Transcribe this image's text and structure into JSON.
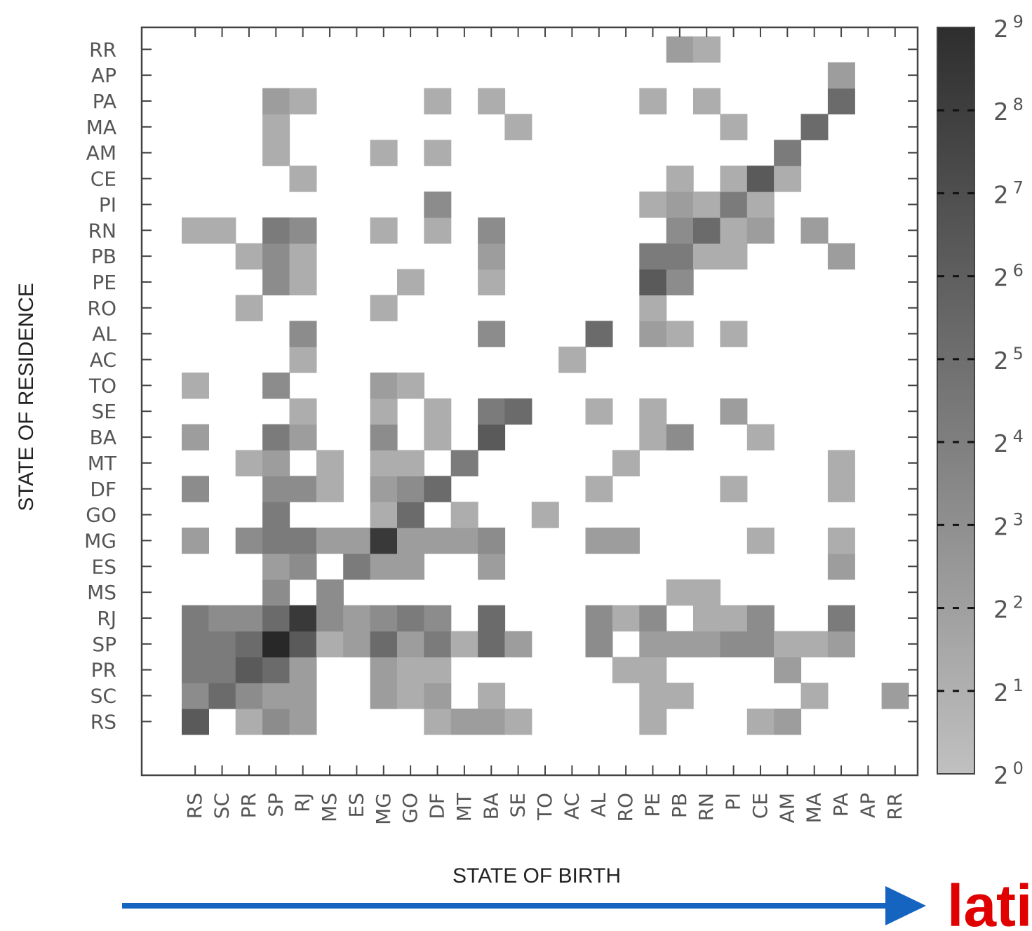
{
  "chart_data": {
    "type": "heatmap",
    "xlabel": "STATE OF BIRTH",
    "ylabel": "STATE OF RESIDENCE",
    "x_categories": [
      "RS",
      "SC",
      "PR",
      "SP",
      "RJ",
      "MS",
      "ES",
      "MG",
      "GO",
      "DF",
      "MT",
      "BA",
      "SE",
      "TO",
      "AC",
      "AL",
      "RO",
      "PE",
      "PB",
      "RN",
      "PI",
      "CE",
      "AM",
      "MA",
      "PA",
      "AP",
      "RR"
    ],
    "y_categories": [
      "RS",
      "SC",
      "PR",
      "SP",
      "RJ",
      "MS",
      "ES",
      "MG",
      "GO",
      "DF",
      "MT",
      "BA",
      "SE",
      "TO",
      "AC",
      "AL",
      "RO",
      "PE",
      "PB",
      "RN",
      "PI",
      "CE",
      "AM",
      "MA",
      "PA",
      "AP",
      "RR"
    ],
    "colorbar": {
      "scale": "log2",
      "min_exponent": 0,
      "max_exponent": 9,
      "tick_labels": [
        {
          "base": "2",
          "exp": "0"
        },
        {
          "base": "2",
          "exp": "1"
        },
        {
          "base": "2",
          "exp": "2"
        },
        {
          "base": "2",
          "exp": "3"
        },
        {
          "base": "2",
          "exp": "4"
        },
        {
          "base": "2",
          "exp": "5"
        },
        {
          "base": "2",
          "exp": "6"
        },
        {
          "base": "2",
          "exp": "7"
        },
        {
          "base": "2",
          "exp": "8"
        },
        {
          "base": "2",
          "exp": "9"
        }
      ]
    },
    "note": "cells list [residence, birth, log2 value]; blank cells = no data",
    "cells": [
      [
        "RS",
        "RS",
        6
      ],
      [
        "RS",
        "PR",
        1
      ],
      [
        "RS",
        "SP",
        3
      ],
      [
        "RS",
        "RJ",
        2
      ],
      [
        "RS",
        "DF",
        1
      ],
      [
        "RS",
        "MT",
        2
      ],
      [
        "RS",
        "BA",
        2
      ],
      [
        "RS",
        "SE",
        1
      ],
      [
        "RS",
        "PE",
        1
      ],
      [
        "RS",
        "CE",
        1
      ],
      [
        "RS",
        "AM",
        2
      ],
      [
        "SC",
        "RS",
        3
      ],
      [
        "SC",
        "SC",
        5
      ],
      [
        "SC",
        "PR",
        3
      ],
      [
        "SC",
        "SP",
        2
      ],
      [
        "SC",
        "RJ",
        2
      ],
      [
        "SC",
        "MG",
        2
      ],
      [
        "SC",
        "GO",
        1
      ],
      [
        "SC",
        "DF",
        2
      ],
      [
        "SC",
        "BA",
        1
      ],
      [
        "SC",
        "PE",
        1
      ],
      [
        "SC",
        "PB",
        1
      ],
      [
        "SC",
        "MA",
        1
      ],
      [
        "SC",
        "RR",
        2
      ],
      [
        "PR",
        "RS",
        4
      ],
      [
        "PR",
        "SC",
        4
      ],
      [
        "PR",
        "PR",
        6
      ],
      [
        "PR",
        "SP",
        5
      ],
      [
        "PR",
        "RJ",
        2
      ],
      [
        "PR",
        "MG",
        2
      ],
      [
        "PR",
        "GO",
        1
      ],
      [
        "PR",
        "DF",
        1
      ],
      [
        "PR",
        "RO",
        1
      ],
      [
        "PR",
        "PE",
        1
      ],
      [
        "PR",
        "AM",
        2
      ],
      [
        "SP",
        "RS",
        4
      ],
      [
        "SP",
        "SC",
        4
      ],
      [
        "SP",
        "PR",
        5
      ],
      [
        "SP",
        "SP",
        9
      ],
      [
        "SP",
        "RJ",
        6
      ],
      [
        "SP",
        "MS",
        1
      ],
      [
        "SP",
        "ES",
        2
      ],
      [
        "SP",
        "MG",
        5
      ],
      [
        "SP",
        "GO",
        2
      ],
      [
        "SP",
        "DF",
        4
      ],
      [
        "SP",
        "MT",
        1
      ],
      [
        "SP",
        "BA",
        5
      ],
      [
        "SP",
        "SE",
        2
      ],
      [
        "SP",
        "AL",
        3
      ],
      [
        "SP",
        "PE",
        2
      ],
      [
        "SP",
        "PB",
        2
      ],
      [
        "SP",
        "RN",
        2
      ],
      [
        "SP",
        "PI",
        3
      ],
      [
        "SP",
        "CE",
        3
      ],
      [
        "SP",
        "AM",
        1
      ],
      [
        "SP",
        "MA",
        1
      ],
      [
        "SP",
        "PA",
        2
      ],
      [
        "RJ",
        "RS",
        4
      ],
      [
        "RJ",
        "SC",
        3
      ],
      [
        "RJ",
        "PR",
        3
      ],
      [
        "RJ",
        "SP",
        5
      ],
      [
        "RJ",
        "RJ",
        8
      ],
      [
        "RJ",
        "MS",
        3
      ],
      [
        "RJ",
        "ES",
        2
      ],
      [
        "RJ",
        "MG",
        3
      ],
      [
        "RJ",
        "GO",
        4
      ],
      [
        "RJ",
        "DF",
        3
      ],
      [
        "RJ",
        "BA",
        5
      ],
      [
        "RJ",
        "AL",
        3
      ],
      [
        "RJ",
        "RO",
        1
      ],
      [
        "RJ",
        "PE",
        3
      ],
      [
        "RJ",
        "RN",
        1
      ],
      [
        "RJ",
        "PI",
        1
      ],
      [
        "RJ",
        "CE",
        3
      ],
      [
        "RJ",
        "PA",
        4
      ],
      [
        "MS",
        "SP",
        3
      ],
      [
        "MS",
        "MS",
        3
      ],
      [
        "MS",
        "PB",
        1
      ],
      [
        "MS",
        "RN",
        1
      ],
      [
        "ES",
        "SP",
        2
      ],
      [
        "ES",
        "RJ",
        3
      ],
      [
        "ES",
        "ES",
        4
      ],
      [
        "ES",
        "MG",
        2
      ],
      [
        "ES",
        "GO",
        2
      ],
      [
        "ES",
        "BA",
        2
      ],
      [
        "ES",
        "PA",
        2
      ],
      [
        "MG",
        "RS",
        2
      ],
      [
        "MG",
        "PR",
        3
      ],
      [
        "MG",
        "SP",
        4
      ],
      [
        "MG",
        "RJ",
        4
      ],
      [
        "MG",
        "MS",
        2
      ],
      [
        "MG",
        "ES",
        2
      ],
      [
        "MG",
        "MG",
        8
      ],
      [
        "MG",
        "GO",
        2
      ],
      [
        "MG",
        "DF",
        2
      ],
      [
        "MG",
        "MT",
        2
      ],
      [
        "MG",
        "BA",
        3
      ],
      [
        "MG",
        "AL",
        2
      ],
      [
        "MG",
        "RO",
        2
      ],
      [
        "MG",
        "CE",
        1
      ],
      [
        "MG",
        "PA",
        1
      ],
      [
        "GO",
        "SP",
        4
      ],
      [
        "GO",
        "MG",
        1
      ],
      [
        "GO",
        "GO",
        5
      ],
      [
        "GO",
        "MT",
        1
      ],
      [
        "GO",
        "TO",
        1
      ],
      [
        "DF",
        "RS",
        3
      ],
      [
        "DF",
        "SP",
        3
      ],
      [
        "DF",
        "RJ",
        3
      ],
      [
        "DF",
        "MS",
        1
      ],
      [
        "DF",
        "MG",
        2
      ],
      [
        "DF",
        "GO",
        3
      ],
      [
        "DF",
        "DF",
        5
      ],
      [
        "DF",
        "AL",
        1
      ],
      [
        "DF",
        "PI",
        1
      ],
      [
        "DF",
        "PA",
        1
      ],
      [
        "MT",
        "PR",
        1
      ],
      [
        "MT",
        "SP",
        2
      ],
      [
        "MT",
        "MS",
        1
      ],
      [
        "MT",
        "MG",
        1
      ],
      [
        "MT",
        "GO",
        1
      ],
      [
        "MT",
        "MT",
        4
      ],
      [
        "MT",
        "RO",
        1
      ],
      [
        "MT",
        "PA",
        1
      ],
      [
        "BA",
        "RS",
        2
      ],
      [
        "BA",
        "SP",
        4
      ],
      [
        "BA",
        "RJ",
        2
      ],
      [
        "BA",
        "MG",
        3
      ],
      [
        "BA",
        "DF",
        1
      ],
      [
        "BA",
        "BA",
        6
      ],
      [
        "BA",
        "PE",
        1
      ],
      [
        "BA",
        "PB",
        3
      ],
      [
        "BA",
        "CE",
        1
      ],
      [
        "SE",
        "RJ",
        1
      ],
      [
        "SE",
        "MG",
        1
      ],
      [
        "SE",
        "DF",
        1
      ],
      [
        "SE",
        "BA",
        4
      ],
      [
        "SE",
        "SE",
        5
      ],
      [
        "SE",
        "AL",
        1
      ],
      [
        "SE",
        "PE",
        1
      ],
      [
        "SE",
        "PI",
        2
      ],
      [
        "TO",
        "RS",
        1
      ],
      [
        "TO",
        "SP",
        3
      ],
      [
        "TO",
        "MG",
        2
      ],
      [
        "TO",
        "GO",
        1
      ],
      [
        "AC",
        "RJ",
        1
      ],
      [
        "AC",
        "AC",
        1
      ],
      [
        "AL",
        "RJ",
        3
      ],
      [
        "AL",
        "BA",
        3
      ],
      [
        "AL",
        "AL",
        5
      ],
      [
        "AL",
        "PE",
        2
      ],
      [
        "AL",
        "PB",
        1
      ],
      [
        "AL",
        "PI",
        1
      ],
      [
        "RO",
        "PR",
        1
      ],
      [
        "RO",
        "MG",
        1
      ],
      [
        "RO",
        "PE",
        1
      ],
      [
        "PE",
        "SP",
        3
      ],
      [
        "PE",
        "RJ",
        1
      ],
      [
        "PE",
        "GO",
        1
      ],
      [
        "PE",
        "BA",
        1
      ],
      [
        "PE",
        "PE",
        6
      ],
      [
        "PE",
        "PB",
        3
      ],
      [
        "PB",
        "PR",
        1
      ],
      [
        "PB",
        "SP",
        3
      ],
      [
        "PB",
        "RJ",
        1
      ],
      [
        "PB",
        "BA",
        2
      ],
      [
        "PB",
        "PE",
        4
      ],
      [
        "PB",
        "PB",
        4
      ],
      [
        "PB",
        "RN",
        1
      ],
      [
        "PB",
        "PI",
        1
      ],
      [
        "PB",
        "PA",
        2
      ],
      [
        "RN",
        "RS",
        1
      ],
      [
        "RN",
        "SC",
        1
      ],
      [
        "RN",
        "SP",
        4
      ],
      [
        "RN",
        "RJ",
        3
      ],
      [
        "RN",
        "MG",
        1
      ],
      [
        "RN",
        "DF",
        1
      ],
      [
        "RN",
        "BA",
        3
      ],
      [
        "RN",
        "PB",
        3
      ],
      [
        "RN",
        "RN",
        5
      ],
      [
        "RN",
        "PI",
        1
      ],
      [
        "RN",
        "CE",
        2
      ],
      [
        "RN",
        "MA",
        2
      ],
      [
        "PI",
        "DF",
        3
      ],
      [
        "PI",
        "PE",
        1
      ],
      [
        "PI",
        "PB",
        2
      ],
      [
        "PI",
        "RN",
        1
      ],
      [
        "PI",
        "PI",
        4
      ],
      [
        "PI",
        "CE",
        1
      ],
      [
        "CE",
        "RJ",
        1
      ],
      [
        "CE",
        "PB",
        1
      ],
      [
        "CE",
        "PI",
        1
      ],
      [
        "CE",
        "CE",
        6
      ],
      [
        "CE",
        "AM",
        1
      ],
      [
        "AM",
        "SP",
        1
      ],
      [
        "AM",
        "MG",
        1
      ],
      [
        "AM",
        "DF",
        1
      ],
      [
        "AM",
        "AM",
        4
      ],
      [
        "MA",
        "SP",
        1
      ],
      [
        "MA",
        "SE",
        1
      ],
      [
        "MA",
        "PI",
        1
      ],
      [
        "MA",
        "MA",
        5
      ],
      [
        "PA",
        "SP",
        2
      ],
      [
        "PA",
        "RJ",
        1
      ],
      [
        "PA",
        "DF",
        1
      ],
      [
        "PA",
        "BA",
        1
      ],
      [
        "PA",
        "PE",
        1
      ],
      [
        "PA",
        "RN",
        1
      ],
      [
        "PA",
        "PA",
        5
      ],
      [
        "AP",
        "PA",
        2
      ],
      [
        "RR",
        "PB",
        2
      ],
      [
        "RR",
        "RN",
        1
      ]
    ]
  },
  "annotation": {
    "text": "lati",
    "arrow_color": "#1565c0",
    "text_color": "#e00000"
  }
}
